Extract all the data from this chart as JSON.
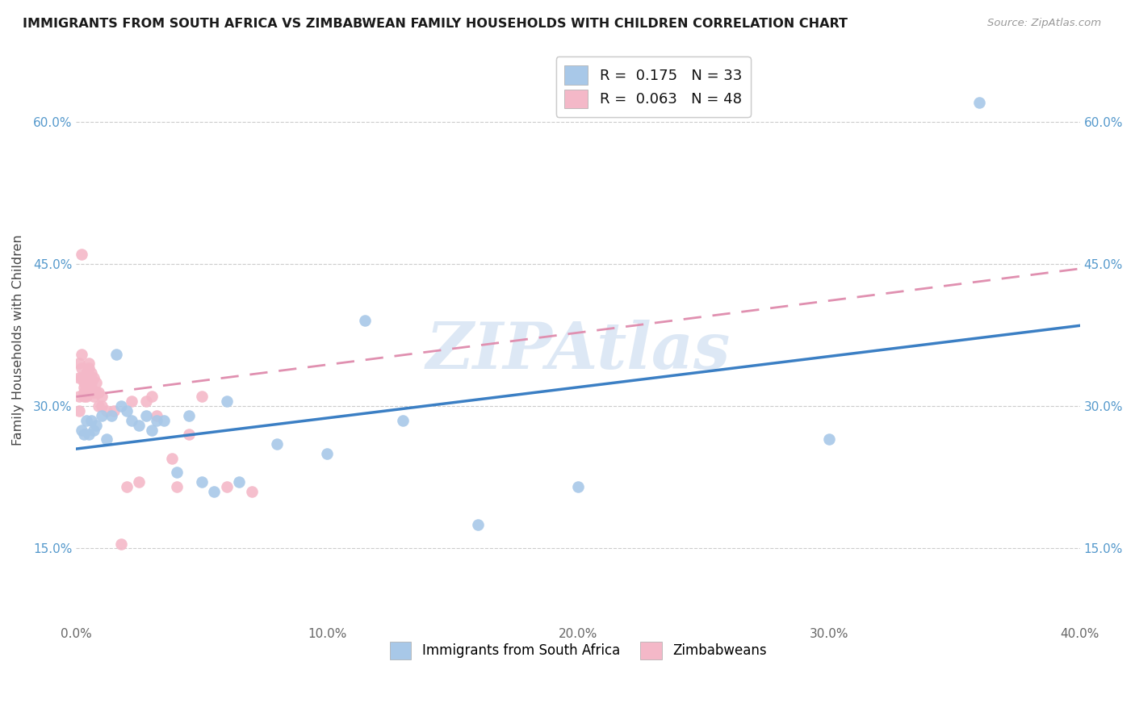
{
  "title": "IMMIGRANTS FROM SOUTH AFRICA VS ZIMBABWEAN FAMILY HOUSEHOLDS WITH CHILDREN CORRELATION CHART",
  "source": "Source: ZipAtlas.com",
  "ylabel": "Family Households with Children",
  "xlim": [
    0.0,
    0.4
  ],
  "ylim": [
    0.07,
    0.67
  ],
  "xticks": [
    0.0,
    0.1,
    0.2,
    0.3,
    0.4
  ],
  "xtick_labels": [
    "0.0%",
    "10.0%",
    "20.0%",
    "30.0%",
    "40.0%"
  ],
  "yticks": [
    0.15,
    0.3,
    0.45,
    0.6
  ],
  "ytick_labels": [
    "15.0%",
    "30.0%",
    "45.0%",
    "60.0%"
  ],
  "legend_r1": "R =  0.175   N = 33",
  "legend_r2": "R =  0.063   N = 48",
  "legend_label1": "Immigrants from South Africa",
  "legend_label2": "Zimbabweans",
  "blue_color": "#a8c8e8",
  "pink_color": "#f4b8c8",
  "trend_blue": "#3b7fc4",
  "trend_pink": "#e090b0",
  "watermark": "ZIPAtlas",
  "blue_x": [
    0.002,
    0.003,
    0.004,
    0.005,
    0.006,
    0.007,
    0.008,
    0.01,
    0.012,
    0.014,
    0.016,
    0.018,
    0.02,
    0.022,
    0.025,
    0.028,
    0.03,
    0.032,
    0.035,
    0.04,
    0.045,
    0.05,
    0.055,
    0.06,
    0.065,
    0.08,
    0.1,
    0.115,
    0.13,
    0.16,
    0.2,
    0.3,
    0.36
  ],
  "blue_y": [
    0.275,
    0.27,
    0.285,
    0.27,
    0.285,
    0.275,
    0.28,
    0.29,
    0.265,
    0.29,
    0.355,
    0.3,
    0.295,
    0.285,
    0.28,
    0.29,
    0.275,
    0.285,
    0.285,
    0.23,
    0.29,
    0.22,
    0.21,
    0.305,
    0.22,
    0.26,
    0.25,
    0.39,
    0.285,
    0.175,
    0.215,
    0.265,
    0.62
  ],
  "pink_x": [
    0.001,
    0.001,
    0.001,
    0.001,
    0.002,
    0.002,
    0.002,
    0.002,
    0.003,
    0.003,
    0.003,
    0.003,
    0.004,
    0.004,
    0.004,
    0.004,
    0.005,
    0.005,
    0.005,
    0.005,
    0.006,
    0.006,
    0.006,
    0.006,
    0.007,
    0.007,
    0.007,
    0.008,
    0.008,
    0.009,
    0.009,
    0.01,
    0.01,
    0.012,
    0.015,
    0.018,
    0.02,
    0.022,
    0.025,
    0.028,
    0.03,
    0.032,
    0.038,
    0.04,
    0.045,
    0.05,
    0.06,
    0.07
  ],
  "pink_y": [
    0.295,
    0.31,
    0.33,
    0.345,
    0.46,
    0.355,
    0.34,
    0.33,
    0.325,
    0.32,
    0.315,
    0.31,
    0.335,
    0.33,
    0.32,
    0.31,
    0.345,
    0.34,
    0.33,
    0.32,
    0.335,
    0.33,
    0.325,
    0.32,
    0.33,
    0.315,
    0.31,
    0.325,
    0.315,
    0.315,
    0.3,
    0.31,
    0.3,
    0.295,
    0.295,
    0.155,
    0.215,
    0.305,
    0.22,
    0.305,
    0.31,
    0.29,
    0.245,
    0.215,
    0.27,
    0.31,
    0.215,
    0.21
  ],
  "blue_trend_x": [
    0.0,
    0.4
  ],
  "blue_trend_y": [
    0.255,
    0.385
  ],
  "pink_trend_x": [
    0.0,
    0.4
  ],
  "pink_trend_y": [
    0.31,
    0.445
  ]
}
